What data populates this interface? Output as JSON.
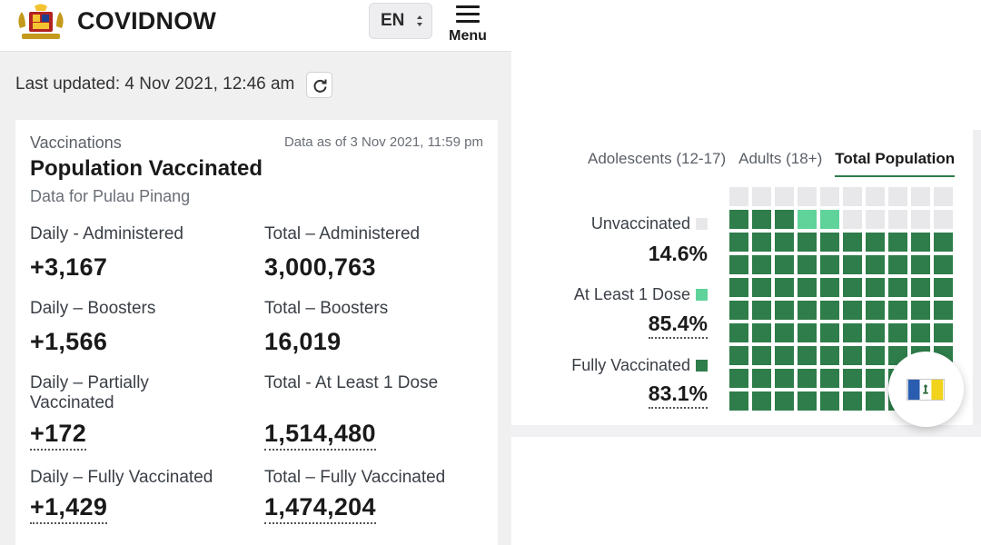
{
  "header": {
    "brand": "COVIDNOW",
    "lang": "EN",
    "menu_label": "Menu"
  },
  "updated": {
    "text": "Last updated: 4 Nov 2021, 12:46 am"
  },
  "card": {
    "category": "Vaccinations",
    "as_of": "Data as of 3 Nov 2021, 11:59 pm",
    "title": "Population Vaccinated",
    "subtitle": "Data for Pulau Pinang",
    "stats": [
      {
        "label": "Daily - Administered",
        "value": "+3,167"
      },
      {
        "label": "Total – Administered",
        "value": "3,000,763"
      },
      {
        "label": "Daily – Boosters",
        "value": "+1,566"
      },
      {
        "label": "Total – Boosters",
        "value": "16,019"
      },
      {
        "label": "Daily – Partially Vaccinated",
        "value": "+172"
      },
      {
        "label": "Total - At Least 1 Dose",
        "value": "1,514,480"
      },
      {
        "label": "Daily – Fully Vaccinated",
        "value": "+1,429"
      },
      {
        "label": "Total – Fully Vaccinated",
        "value": "1,474,204"
      }
    ]
  },
  "waffle": {
    "tabs": [
      "Adolescents (12-17)",
      "Adults (18+)",
      "Total Population"
    ],
    "active_tab": "Total Population",
    "legend": [
      {
        "label": "Unvaccinated",
        "pct": "14.6%",
        "color": "#e8e8eb"
      },
      {
        "label": "At Least 1 Dose",
        "pct": "85.4%",
        "color": "#5fd39a"
      },
      {
        "label": "Fully Vaccinated",
        "pct": "83.1%",
        "color": "#2e7d4a"
      }
    ],
    "grid": {
      "rows": 10,
      "cols": 10,
      "unvaccinated_cells": 15,
      "partial_cells": 2
    }
  },
  "colors": {
    "dark_green": "#2e7d4a",
    "light_green": "#5fd39a",
    "grey_cell": "#e8e8eb"
  }
}
